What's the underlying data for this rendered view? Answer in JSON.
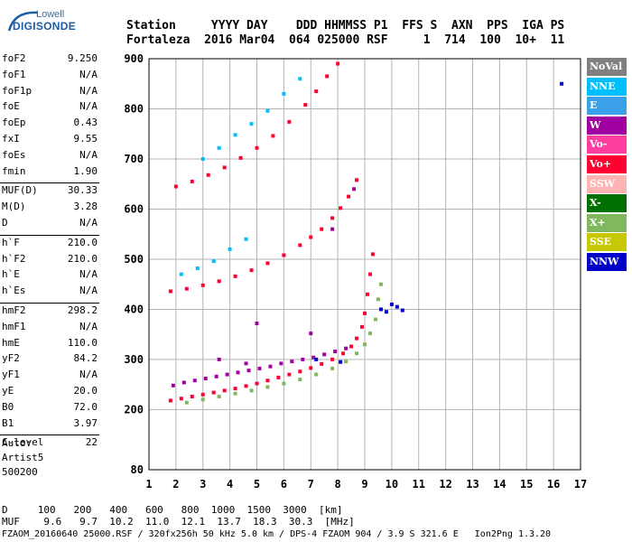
{
  "logo": {
    "brand": "Lowell",
    "name": "DIGISONDE"
  },
  "header": {
    "line1": "Station     YYYY DAY    DDD HHMMSS P1  FFS S  AXN  PPS  IGA PS",
    "line2": "Fortaleza  2016 Mar04  064 025000 RSF     1  714  100  10+  11"
  },
  "params": [
    {
      "name": "foF2",
      "value": "9.250"
    },
    {
      "name": "foF1",
      "value": "N/A"
    },
    {
      "name": "foF1p",
      "value": "N/A"
    },
    {
      "name": "foE",
      "value": "N/A"
    },
    {
      "name": "foEp",
      "value": "0.43"
    },
    {
      "name": "fxI",
      "value": "9.55"
    },
    {
      "name": "foEs",
      "value": "N/A"
    },
    {
      "name": "fmin",
      "value": "1.90"
    },
    {
      "name": "MUF(D)",
      "value": "30.33"
    },
    {
      "name": "M(D)",
      "value": "3.28"
    },
    {
      "name": "D",
      "value": "N/A"
    },
    {
      "name": "h`F",
      "value": "210.0"
    },
    {
      "name": "h`F2",
      "value": "210.0"
    },
    {
      "name": "h`E",
      "value": "N/A"
    },
    {
      "name": "h`Es",
      "value": "N/A"
    },
    {
      "name": "hmF2",
      "value": "298.2"
    },
    {
      "name": "hmF1",
      "value": "N/A"
    },
    {
      "name": "hmE",
      "value": "110.0"
    },
    {
      "name": "yF2",
      "value": "84.2"
    },
    {
      "name": "yF1",
      "value": "N/A"
    },
    {
      "name": "yE",
      "value": "20.0"
    },
    {
      "name": "B0",
      "value": "72.0"
    },
    {
      "name": "B1",
      "value": "3.97"
    },
    {
      "name": "C-level",
      "value": "22"
    }
  ],
  "extra": {
    "auto": "Auto:",
    "artist": "Artist5",
    "code": "500200"
  },
  "legend": [
    {
      "label": "NoVal",
      "color": "#808080"
    },
    {
      "label": "NNE",
      "color": "#00bfff"
    },
    {
      "label": "E",
      "color": "#3aa0e8"
    },
    {
      "label": "W",
      "color": "#a000a0"
    },
    {
      "label": "Vo-",
      "color": "#ff3fa0"
    },
    {
      "label": "Vo+",
      "color": "#ff0030"
    },
    {
      "label": "SSW",
      "color": "#ffb4b4"
    },
    {
      "label": "X-",
      "color": "#007000"
    },
    {
      "label": "X+",
      "color": "#80b860"
    },
    {
      "label": "SSE",
      "color": "#c8c800"
    },
    {
      "label": "NNW",
      "color": "#0000c8"
    }
  ],
  "footer": {
    "d_line": "D     100   200   400   600   800  1000  1500  3000  [km]",
    "muf_line": "MUF    9.6   9.7  10.2  11.0  12.1  13.7  18.3  30.3  [MHz]",
    "file_line": "FZAOM_20160640 25000.RSF / 320fx256h 50 kHz 5.0 km / DPS-4 FZAOM 904 / 3.9 S 321.6 E   Ion2Png 1.3.20"
  },
  "chart_data": {
    "type": "scatter",
    "xlim": [
      1,
      17
    ],
    "ylim": [
      80,
      900
    ],
    "x_ticks": [
      1,
      2,
      3,
      4,
      5,
      6,
      7,
      8,
      9,
      10,
      11,
      12,
      13,
      14,
      15,
      16,
      17
    ],
    "y_ticks": [
      80,
      200,
      300,
      400,
      500,
      600,
      700,
      800,
      900
    ],
    "grid": true,
    "series": [
      {
        "name": "Vo+",
        "color": "#ff0030",
        "points": [
          [
            1.8,
            218
          ],
          [
            2.2,
            222
          ],
          [
            2.6,
            226
          ],
          [
            3.0,
            230
          ],
          [
            3.4,
            234
          ],
          [
            3.8,
            238
          ],
          [
            4.2,
            242
          ],
          [
            4.6,
            247
          ],
          [
            5.0,
            252
          ],
          [
            5.4,
            258
          ],
          [
            5.8,
            264
          ],
          [
            6.2,
            270
          ],
          [
            6.6,
            276
          ],
          [
            7.0,
            283
          ],
          [
            7.4,
            291
          ],
          [
            7.8,
            300
          ],
          [
            8.2,
            312
          ],
          [
            8.5,
            326
          ],
          [
            8.7,
            342
          ],
          [
            8.9,
            365
          ],
          [
            9.0,
            392
          ],
          [
            9.1,
            430
          ],
          [
            9.2,
            470
          ],
          [
            9.3,
            510
          ],
          [
            1.8,
            436
          ],
          [
            2.4,
            441
          ],
          [
            3.0,
            448
          ],
          [
            3.6,
            456
          ],
          [
            4.2,
            466
          ],
          [
            4.8,
            478
          ],
          [
            5.4,
            492
          ],
          [
            6.0,
            508
          ],
          [
            6.6,
            528
          ],
          [
            7.0,
            544
          ],
          [
            7.4,
            560
          ],
          [
            7.8,
            582
          ],
          [
            8.1,
            602
          ],
          [
            8.4,
            625
          ],
          [
            8.7,
            658
          ],
          [
            2.0,
            645
          ],
          [
            2.6,
            655
          ],
          [
            3.2,
            668
          ],
          [
            3.8,
            683
          ],
          [
            4.4,
            702
          ],
          [
            5.0,
            722
          ],
          [
            5.6,
            746
          ],
          [
            6.2,
            774
          ],
          [
            6.8,
            808
          ],
          [
            7.2,
            835
          ],
          [
            7.6,
            865
          ],
          [
            8.0,
            890
          ]
        ]
      },
      {
        "name": "X+",
        "color": "#80b860",
        "points": [
          [
            2.4,
            214
          ],
          [
            3.0,
            220
          ],
          [
            3.6,
            226
          ],
          [
            4.2,
            232
          ],
          [
            4.8,
            238
          ],
          [
            5.4,
            245
          ],
          [
            6.0,
            252
          ],
          [
            6.6,
            260
          ],
          [
            7.2,
            270
          ],
          [
            7.8,
            282
          ],
          [
            8.3,
            296
          ],
          [
            8.7,
            312
          ],
          [
            9.0,
            330
          ],
          [
            9.2,
            352
          ],
          [
            9.4,
            380
          ],
          [
            9.5,
            420
          ],
          [
            9.6,
            450
          ]
        ]
      },
      {
        "name": "W",
        "color": "#a000a0",
        "points": [
          [
            1.9,
            248
          ],
          [
            2.3,
            254
          ],
          [
            2.7,
            258
          ],
          [
            3.1,
            262
          ],
          [
            3.5,
            266
          ],
          [
            3.9,
            270
          ],
          [
            4.3,
            274
          ],
          [
            4.7,
            278
          ],
          [
            5.1,
            282
          ],
          [
            5.5,
            286
          ],
          [
            5.9,
            292
          ],
          [
            6.3,
            296
          ],
          [
            6.7,
            300
          ],
          [
            7.1,
            304
          ],
          [
            7.5,
            310
          ],
          [
            7.9,
            316
          ],
          [
            8.3,
            322
          ],
          [
            3.6,
            300
          ],
          [
            4.6,
            292
          ],
          [
            5.0,
            372
          ],
          [
            7.0,
            352
          ],
          [
            7.8,
            560
          ],
          [
            8.6,
            640
          ]
        ]
      },
      {
        "name": "NNE",
        "color": "#00bfff",
        "points": [
          [
            2.2,
            470
          ],
          [
            2.8,
            482
          ],
          [
            3.4,
            496
          ],
          [
            4.0,
            520
          ],
          [
            4.6,
            540
          ],
          [
            3.0,
            700
          ],
          [
            3.6,
            722
          ],
          [
            4.2,
            748
          ],
          [
            4.8,
            770
          ],
          [
            5.4,
            796
          ],
          [
            6.0,
            830
          ],
          [
            6.6,
            860
          ]
        ]
      },
      {
        "name": "NNW",
        "color": "#0000c8",
        "points": [
          [
            9.6,
            400
          ],
          [
            9.8,
            395
          ],
          [
            10.0,
            410
          ],
          [
            10.2,
            405
          ],
          [
            10.4,
            398
          ],
          [
            7.2,
            300
          ],
          [
            8.1,
            295
          ],
          [
            16.3,
            850
          ]
        ]
      }
    ]
  }
}
